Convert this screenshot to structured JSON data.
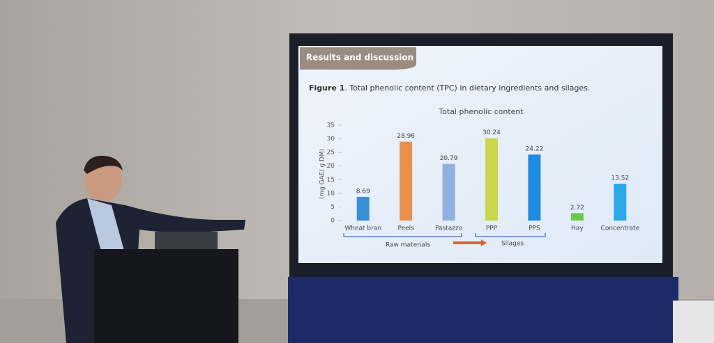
{
  "slide": {
    "header": "Results and discussion",
    "caption_label": "Figure 1",
    "caption_text": ". Total phenolic content (TPC) in dietary ingredients and silages."
  },
  "chart_data": {
    "type": "bar",
    "title": "Total phenolic content",
    "y_label": "(mg GAE/ g DM)",
    "categories": [
      "Wheat bran",
      "Peels",
      "Pastazzo",
      "PPP",
      "PPS",
      "Hay",
      "Concentrate"
    ],
    "values": [
      8.69,
      28.96,
      20.79,
      30.24,
      24.22,
      2.72,
      13.52
    ],
    "colors": [
      "#3b8fd9",
      "#e8904a",
      "#8fb0e0",
      "#c9d84a",
      "#1f8be0",
      "#6cc94a",
      "#2aa8e8"
    ],
    "ylim": [
      0,
      35
    ],
    "yticks": [
      0,
      5,
      10,
      15,
      20,
      25,
      30,
      35
    ],
    "annotations": [
      "Raw materials",
      "Silages"
    ]
  }
}
